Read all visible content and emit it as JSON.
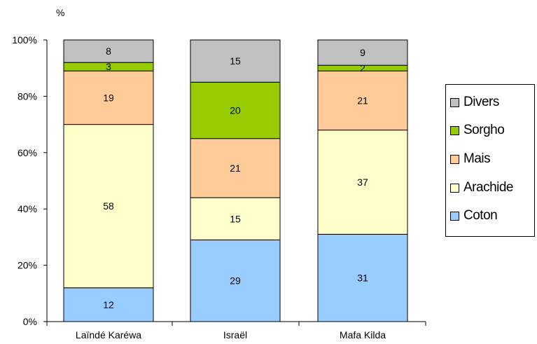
{
  "unit_label": "%",
  "chart_data": {
    "type": "bar",
    "stacked": true,
    "normalized": true,
    "title": "",
    "xlabel": "",
    "ylabel": "%",
    "ylim": [
      0,
      100
    ],
    "yticks": [
      "0%",
      "20%",
      "40%",
      "60%",
      "80%",
      "100%"
    ],
    "categories": [
      "Laïndé Karéwa",
      "Israël",
      "Mafa Kilda"
    ],
    "series": [
      {
        "name": "Coton",
        "color": "#99ccff",
        "values": [
          12,
          29,
          31
        ]
      },
      {
        "name": "Arachide",
        "color": "#ffffcc",
        "values": [
          58,
          15,
          37
        ]
      },
      {
        "name": "Mais",
        "color": "#ffcc99",
        "values": [
          19,
          21,
          21
        ]
      },
      {
        "name": "Sorgho",
        "color": "#99cc00",
        "values": [
          3,
          20,
          2
        ]
      },
      {
        "name": "Divers",
        "color": "#c0c0c0",
        "values": [
          8,
          15,
          9
        ]
      }
    ],
    "legend": [
      "Divers",
      "Sorgho",
      "Mais",
      "Arachide",
      "Coton"
    ],
    "legend_position": "right",
    "grid": false
  }
}
